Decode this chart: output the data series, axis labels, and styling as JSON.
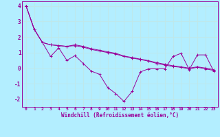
{
  "xlabel": "Windchill (Refroidissement éolien,°C)",
  "background_color": "#b3eeff",
  "line_color": "#990099",
  "grid_color": "#aaddcc",
  "xlim": [
    -0.5,
    23.5
  ],
  "ylim": [
    -2.5,
    4.3
  ],
  "yticks": [
    -2,
    -1,
    0,
    1,
    2,
    3,
    4
  ],
  "xticks": [
    0,
    1,
    2,
    3,
    4,
    5,
    6,
    7,
    8,
    9,
    10,
    11,
    12,
    13,
    14,
    15,
    16,
    17,
    18,
    19,
    20,
    21,
    22,
    23
  ],
  "series": {
    "line1": [
      4.0,
      2.5,
      1.65,
      0.75,
      1.3,
      0.5,
      0.8,
      0.3,
      -0.2,
      -0.4,
      -1.25,
      -1.65,
      -2.15,
      -1.5,
      -0.25,
      -0.05,
      -0.05,
      -0.05,
      0.75,
      0.95,
      -0.1,
      0.85,
      0.85,
      -0.2
    ],
    "line2": [
      4.0,
      2.5,
      1.65,
      1.5,
      1.45,
      1.4,
      1.45,
      1.35,
      1.2,
      1.1,
      1.0,
      0.9,
      0.75,
      0.65,
      0.55,
      0.45,
      0.3,
      0.2,
      0.1,
      0.05,
      -0.05,
      0.05,
      -0.05,
      -0.15
    ],
    "line3": [
      4.0,
      2.5,
      1.65,
      1.5,
      1.45,
      1.4,
      1.5,
      1.4,
      1.25,
      1.15,
      1.05,
      0.95,
      0.78,
      0.68,
      0.58,
      0.48,
      0.35,
      0.25,
      0.15,
      0.08,
      0.0,
      0.08,
      0.0,
      -0.1
    ]
  }
}
